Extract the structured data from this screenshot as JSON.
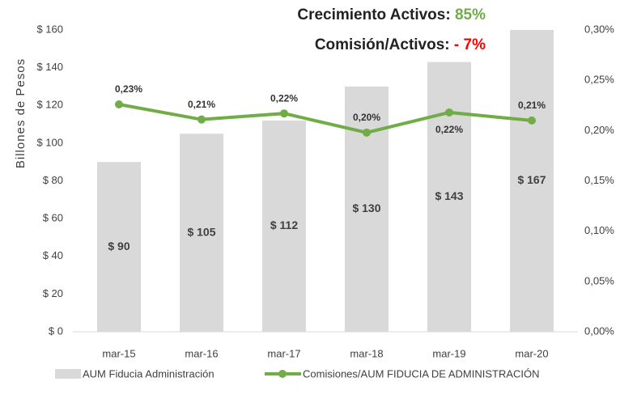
{
  "chart_data": {
    "type": "bar+line",
    "headline": [
      {
        "label": "Crecimiento Activos:",
        "value": "85%",
        "value_color": "#70ad47"
      },
      {
        "label": "Comisión/Activos:",
        "value": "- 7%",
        "value_color": "#ff0000"
      }
    ],
    "y_label": "Billones de Pesos",
    "categories": [
      "mar-15",
      "mar-16",
      "mar-17",
      "mar-18",
      "mar-19",
      "mar-20"
    ],
    "series": [
      {
        "name": "AUM Fiducia Administración",
        "type": "bar",
        "color": "#d9d9d9",
        "values": [
          90,
          105,
          112,
          130,
          143,
          167
        ],
        "value_labels": [
          "$ 90",
          "$ 105",
          "$ 112",
          "$ 130",
          "$ 143",
          "$ 167"
        ]
      },
      {
        "name": "Comisiones/AUM FIDUCIA DE ADMINISTRACIÓN",
        "type": "line",
        "axis": "y2",
        "color": "#70ad47",
        "values": [
          0.226,
          0.211,
          0.217,
          0.198,
          0.218,
          0.21
        ],
        "value_labels": [
          "0,23%",
          "0,21%",
          "0,22%",
          "0,20%",
          "0,22%",
          "0,21%"
        ]
      }
    ],
    "ylim": [
      0,
      160
    ],
    "yticks": [
      {
        "value": 0,
        "label": "$ 0"
      },
      {
        "value": 20,
        "label": "$ 20"
      },
      {
        "value": 40,
        "label": "$ 40"
      },
      {
        "value": 60,
        "label": "$ 60"
      },
      {
        "value": 80,
        "label": "$ 80"
      },
      {
        "value": 100,
        "label": "$ 100"
      },
      {
        "value": 120,
        "label": "$ 120"
      },
      {
        "value": 140,
        "label": "$ 140"
      },
      {
        "value": 160,
        "label": "$ 160"
      }
    ],
    "y2lim": [
      0,
      0.3
    ],
    "y2ticks": [
      {
        "value": 0,
        "label": "0,00%"
      },
      {
        "value": 0.05,
        "label": "0,05%"
      },
      {
        "value": 0.1,
        "label": "0,10%"
      },
      {
        "value": 0.15,
        "label": "0,15%"
      },
      {
        "value": 0.2,
        "label": "0,20%"
      },
      {
        "value": 0.25,
        "label": "0,25%"
      },
      {
        "value": 0.3,
        "label": "0,30%"
      }
    ],
    "grid": false,
    "legend": "bottom"
  }
}
